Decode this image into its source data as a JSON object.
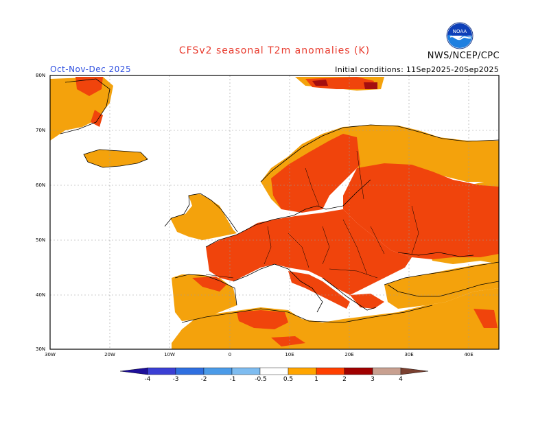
{
  "header": {
    "title": "CFSv2 seasonal T2m anomalies (K)",
    "season": "Oct-Nov-Dec 2025",
    "initial_conditions": "Initial conditions: 11Sep2025-20Sep2025",
    "agency": "NWS/NCEP/CPC",
    "logo_text": "NOAA"
  },
  "axes": {
    "lat_labels": [
      "80N",
      "70N",
      "60N",
      "50N",
      "40N",
      "30N"
    ],
    "lon_labels": [
      "30W",
      "20W",
      "10W",
      "0",
      "10E",
      "20E",
      "30E",
      "40E"
    ]
  },
  "colorbar": {
    "labels": [
      "-4",
      "-3",
      "-2",
      "-1",
      "-0.5",
      "0.5",
      "1",
      "2",
      "3",
      "4"
    ],
    "colors": [
      "#1e0f9a",
      "#3b3fd4",
      "#2f6fe0",
      "#4b9be8",
      "#7ebcf0",
      "#ffffff",
      "#ffa500",
      "#ff4000",
      "#a00000",
      "#c8a090",
      "#7a4030"
    ]
  },
  "legend_categories": {
    "0.5-1": "#f4a20c",
    "1-2": "#f0440c",
    "2-3": "#a40e10"
  }
}
